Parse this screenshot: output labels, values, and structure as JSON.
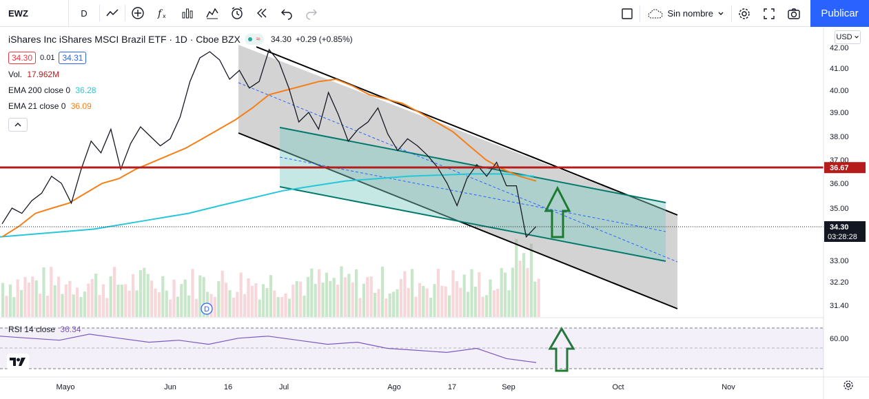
{
  "toolbar": {
    "symbol": "EWZ",
    "interval": "D",
    "icons": [
      "line-chart-icon",
      "plus-circle-icon",
      "function-icon",
      "bar-chart-icon",
      "templates-icon",
      "alert-clock-icon",
      "replay-icon",
      "undo-icon",
      "redo-icon"
    ],
    "layout_name": "Sin nombre",
    "publish_label": "Publicar"
  },
  "legend": {
    "title": "iShares Inc iShares MSCI Brazil ETF · 1D · Cboe BZX",
    "badge": "≈",
    "last": "34.30",
    "change": "+0.29 (+0.85%)",
    "bid": "34.30",
    "spread": "0.01",
    "ask": "34.31",
    "volume_label": "Vol.",
    "volume_value": "17.962M",
    "ema200_label": "EMA 200 close 0",
    "ema200_value": "36.28",
    "ema21_label": "EMA 21 close 0",
    "ema21_value": "36.09"
  },
  "rsi": {
    "label": "RSI 14 close",
    "value": "36.34"
  },
  "currency": "USD",
  "colors": {
    "price": "#131722",
    "ema21": "#f57f17",
    "ema200": "#26c6da",
    "resistance": "#b71c1c",
    "channel_fill": "#9e9e9e",
    "inner_channel": "#00796b",
    "arrow": "#1b7a2e",
    "rsi": "#7e57c2",
    "vol_up": "#c8e6c9",
    "vol_down": "#f8d7da",
    "accent": "#2962ff"
  },
  "chart_data": {
    "type": "line",
    "x_ticks": [
      "Mayo",
      "Jun",
      "16",
      "Jul",
      "Ago",
      "17",
      "Sep",
      "Oct",
      "Nov"
    ],
    "y_ticks": [
      "42.00",
      "41.00",
      "40.00",
      "39.00",
      "38.00",
      "37.00",
      "36.00",
      "35.00",
      "33.00",
      "32.20",
      "31.40"
    ],
    "rsi_ticks": [
      "60.00"
    ],
    "price_markers": [
      {
        "label": "36.67",
        "color": "#b71c1c"
      },
      {
        "label": "34.30",
        "time": "03:28:28",
        "color": "#131722"
      }
    ],
    "resistance_level": 36.67,
    "last_price": 34.3,
    "series": [
      {
        "name": "",
        "values": [
          34.4,
          35.0,
          34.8,
          35.3,
          35.6,
          36.3,
          36.0,
          35.2,
          36.6,
          37.8,
          37.3,
          38.3,
          36.6,
          37.7,
          38.4,
          38.0,
          37.6,
          37.9,
          38.8,
          40.4,
          41.5,
          41.8,
          41.4,
          40.5,
          40.9,
          40.1,
          40.4,
          41.9,
          41.3,
          40.1,
          38.6,
          39.0,
          38.3,
          39.9,
          38.9,
          37.8,
          38.3,
          38.6,
          39.2,
          38.1,
          37.4,
          37.9,
          37.6,
          37.2,
          36.7,
          36.0,
          35.1,
          36.2,
          36.8,
          36.3,
          36.9,
          35.9,
          35.9,
          33.9,
          34.3
        ]
      },
      {
        "name": "EMA 21 close 0",
        "values": [
          33.9,
          34.3,
          34.8,
          35.0,
          35.2,
          35.6,
          36.0,
          36.2,
          36.6,
          36.9,
          37.2,
          37.5,
          37.9,
          38.3,
          38.7,
          39.2,
          39.8,
          40.0,
          40.2,
          40.4,
          40.5,
          40.2,
          39.8,
          39.6,
          39.4,
          39.0,
          38.6,
          38.2,
          37.6,
          37.0,
          36.6,
          36.3,
          36.1
        ]
      },
      {
        "name": "EMA 200 close 0",
        "values": [
          33.9,
          34.0,
          34.1,
          34.2,
          34.4,
          34.6,
          34.8,
          35.1,
          35.4,
          35.7,
          35.9,
          36.1,
          36.2,
          36.3,
          36.35,
          36.4,
          36.4,
          36.3
        ]
      },
      {
        "name": "RSI 14 close",
        "values": [
          62,
          60,
          58,
          64,
          60,
          56,
          58,
          54,
          60,
          62,
          58,
          54,
          56,
          50,
          48,
          46,
          50,
          40,
          36
        ]
      }
    ]
  },
  "bottom_icons": [
    "settings-gear-icon"
  ]
}
